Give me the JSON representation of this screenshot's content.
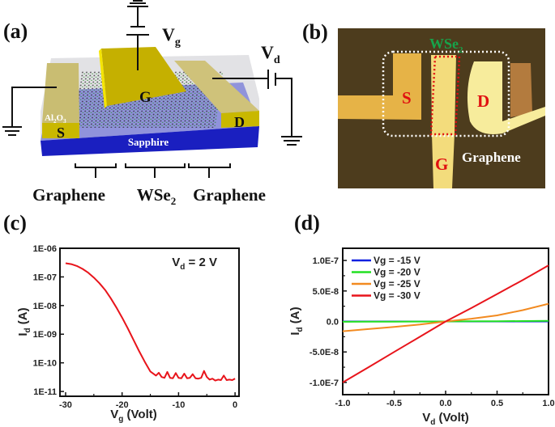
{
  "panel_a": {
    "label": "(a)",
    "vg": {
      "main": "V",
      "sub": "g"
    },
    "vd": {
      "main": "V",
      "sub": "d"
    },
    "gate": "G",
    "source": "S",
    "drain": "D",
    "oxide": {
      "a": "Al",
      "b": "2",
      "c": "O",
      "d": "3"
    },
    "substrate": "Sapphire",
    "bottom_labels": {
      "left": "Graphene",
      "mid_main": "WSe",
      "mid_sub": "2",
      "right": "Graphene"
    },
    "colors": {
      "electrode": "#c9b800",
      "sapphire": "#1a1fc0"
    }
  },
  "panel_b": {
    "label": "(b)",
    "wse2": {
      "main": "WSe",
      "sub": "2"
    },
    "source": "S",
    "drain": "D",
    "gate": "G",
    "graphene": "Graphene",
    "colors": {
      "background": "#4d3c1d",
      "wse2_text": "#17a34a",
      "electrode_text": "#e01010"
    }
  },
  "chart_data": [
    {
      "panel": "(c)",
      "type": "line",
      "annotation": {
        "main": "V",
        "sub": "d",
        "rest": " = 2 V"
      },
      "xlabel": {
        "main": "V",
        "sub": "g",
        "rest": " (Volt)"
      },
      "ylabel": {
        "main": "I",
        "sub": "d",
        "rest": " (A)"
      },
      "xlim": [
        -31,
        0.7
      ],
      "ylim": [
        6.8e-12,
        1e-06
      ],
      "yscale": "log",
      "xticks": [
        "-30",
        "-20",
        "-10",
        "0"
      ],
      "yticks": [
        "1E-06",
        "1E-07",
        "1E-08",
        "1E-09",
        "1E-10",
        "1E-11"
      ],
      "grid": false,
      "series": [
        {
          "color": "#e8141b",
          "x": [
            -30,
            -29,
            -28,
            -27,
            -26,
            -25,
            -24,
            -23,
            -22,
            -21,
            -20,
            -19,
            -18,
            -17,
            -16,
            -15,
            -14,
            -13.5,
            -13,
            -12.5,
            -12,
            -11.5,
            -11,
            -10.5,
            -10,
            -9.5,
            -9,
            -8.5,
            -8,
            -7.5,
            -7,
            -6.5,
            -6,
            -5.5,
            -5,
            -4.5,
            -4,
            -3.5,
            -3,
            -2.5,
            -2,
            -1.5,
            -1,
            -0.5,
            0
          ],
          "y": [
            3e-07,
            2.8e-07,
            2.4e-07,
            1.9e-07,
            1.4e-07,
            9.5e-08,
            6e-08,
            3.5e-08,
            1.8e-08,
            8.5e-09,
            3.8e-09,
            1.6e-09,
            6.5e-10,
            2.6e-10,
            1.1e-10,
            5e-11,
            3.6e-11,
            4.5e-11,
            3.2e-11,
            3e-11,
            4.8e-11,
            3e-11,
            2.9e-11,
            4.4e-11,
            3e-11,
            2.9e-11,
            4.2e-11,
            2.9e-11,
            3e-11,
            4e-11,
            2.9e-11,
            2.8e-11,
            3e-11,
            5.2e-11,
            3.2e-11,
            2.6e-11,
            2.8e-11,
            2.4e-11,
            2.6e-11,
            2.5e-11,
            3.6e-11,
            2.5e-11,
            2.6e-11,
            2.5e-11,
            2.8e-11
          ]
        }
      ]
    },
    {
      "panel": "(d)",
      "type": "line",
      "xlabel": {
        "main": "V",
        "sub": "d",
        "rest": " (Volt)"
      },
      "ylabel": {
        "main": "I",
        "sub": "d",
        "rest": " (A)"
      },
      "xlim": [
        -1.0,
        1.0
      ],
      "ylim": [
        -1.2e-07,
        1.2e-07
      ],
      "xticks": [
        "-1.0",
        "-0.5",
        "0.0",
        "0.5",
        "1.0"
      ],
      "yticks": [
        "1.0E-7",
        "5.0E-8",
        "0.0",
        "-5.0E-8",
        "-1.0E-7"
      ],
      "grid": false,
      "legend_position": "top-left",
      "x": [
        -1.0,
        -0.75,
        -0.5,
        -0.25,
        0.0,
        0.25,
        0.5,
        0.75,
        1.0
      ],
      "series": [
        {
          "name": "Vg = -15 V",
          "color": "#1020e0",
          "values": [
            0,
            0,
            0,
            0,
            0,
            0,
            0,
            0,
            0
          ]
        },
        {
          "name": "Vg = -20 V",
          "color": "#22e022",
          "values": [
            -5e-10,
            -4e-10,
            -2e-10,
            -1e-10,
            0,
            2e-10,
            4e-10,
            6e-10,
            9e-10
          ]
        },
        {
          "name": "Vg = -25 V",
          "color": "#f28a20",
          "values": [
            -1.6e-08,
            -1.25e-08,
            -9e-09,
            -5e-09,
            0,
            4.5e-09,
            1e-08,
            1.85e-08,
            2.9e-08
          ]
        },
        {
          "name": "Vg = -30 V",
          "color": "#e8141b",
          "values": [
            -1e-07,
            -7.5e-08,
            -5e-08,
            -2.5e-08,
            0,
            2.2e-08,
            4.5e-08,
            6.8e-08,
            9.2e-08
          ]
        }
      ]
    }
  ]
}
